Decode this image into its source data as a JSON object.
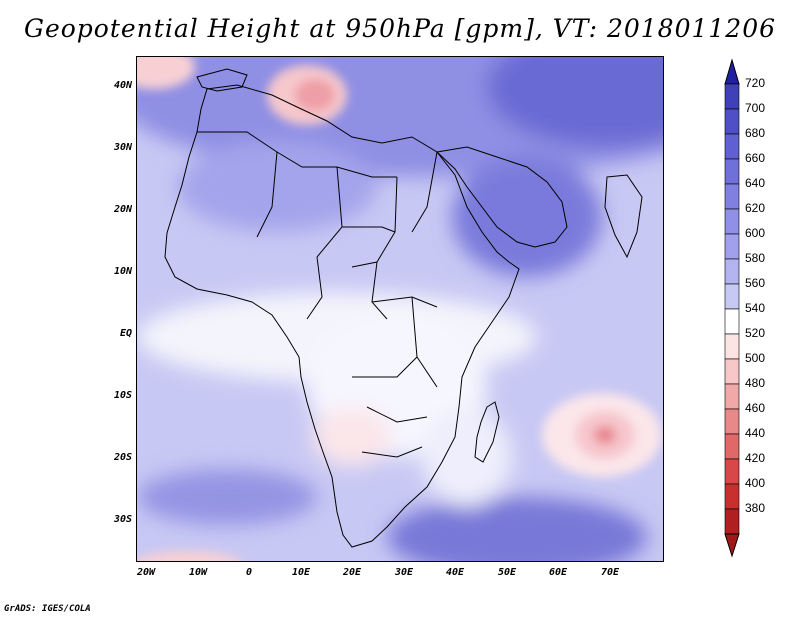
{
  "title": "Geopotential Height at 950hPa [gpm], VT: 2018011206",
  "credit": "GrADS: IGES/COLA",
  "map": {
    "variable": "Geopotential Height",
    "level": "950hPa",
    "units": "gpm",
    "valid_time": "2018011206",
    "lat_labels": [
      "40N",
      "30N",
      "20N",
      "10N",
      "EQ",
      "10S",
      "20S",
      "30S"
    ],
    "lon_labels": [
      "20W",
      "10W",
      "0",
      "10E",
      "20E",
      "30E",
      "40E",
      "50E",
      "60E",
      "70E"
    ]
  },
  "colorbar": {
    "levels": [
      "720",
      "700",
      "680",
      "660",
      "640",
      "620",
      "600",
      "580",
      "560",
      "540",
      "520",
      "500",
      "480",
      "460",
      "440",
      "420",
      "400",
      "380"
    ],
    "colors": [
      "#4040b8",
      "#5050c6",
      "#6060d2",
      "#7070da",
      "#8080e0",
      "#9090e6",
      "#a0a0ec",
      "#b4b4f0",
      "#c8c8f4",
      "#ffffff",
      "#fce4e4",
      "#f8c8c8",
      "#f0a8a8",
      "#e88888",
      "#e06868",
      "#d84848",
      "#c83030",
      "#b02020"
    ],
    "top_color": "#2020a0",
    "bottom_color": "#a01818"
  }
}
